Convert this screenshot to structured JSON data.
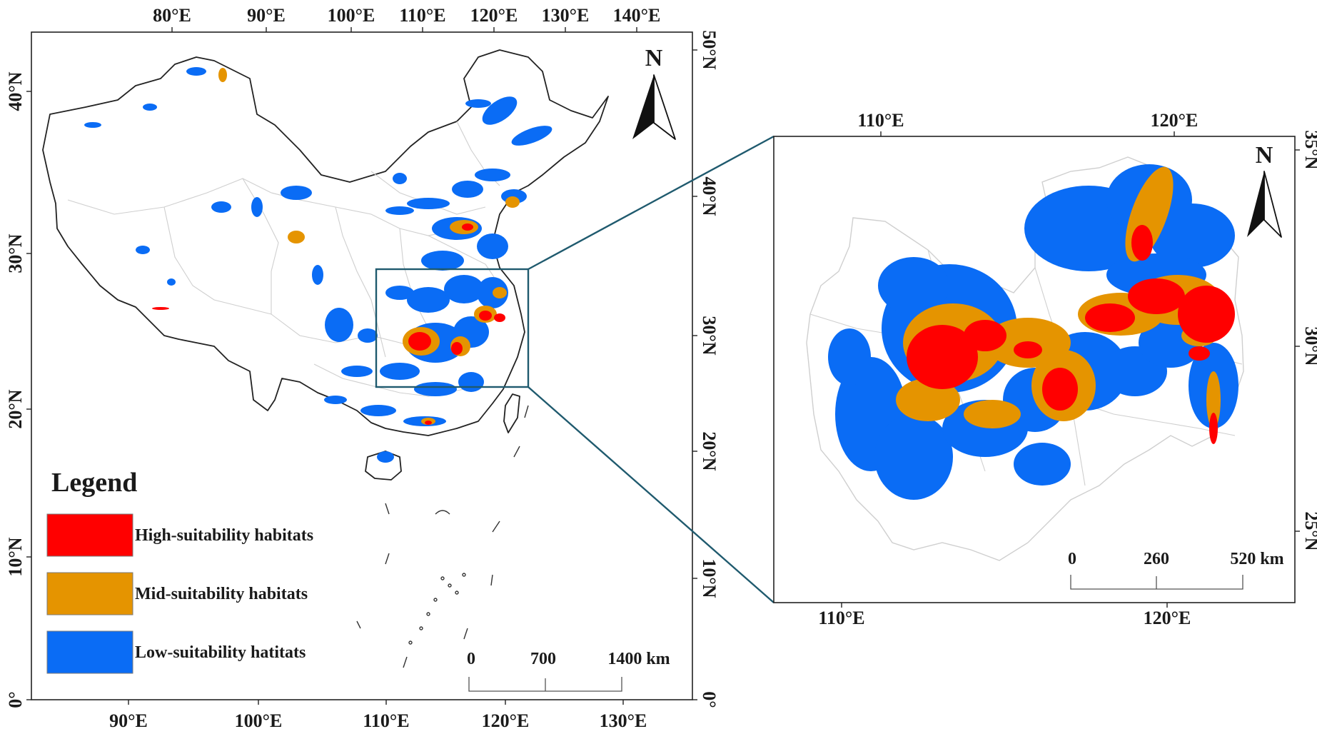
{
  "main_map": {
    "top_lon_labels": [
      "80°E",
      "90°E",
      "100°E",
      "110°E",
      "120°E",
      "130°E",
      "140°E"
    ],
    "bottom_lon_labels": [
      "90°E",
      "100°E",
      "110°E",
      "120°E",
      "130°E"
    ],
    "left_lat_labels": [
      "40°N",
      "30°N",
      "20°N",
      "10°N",
      "0°"
    ],
    "right_lat_labels": [
      "50°N",
      "40°N",
      "30°N",
      "20°N",
      "10°N",
      "0°"
    ],
    "north_label": "N",
    "scale": {
      "labels": [
        "0",
        "700",
        "1400 km"
      ]
    }
  },
  "inset_map": {
    "top_lon_labels": [
      "110°E",
      "120°E"
    ],
    "bottom_lon_labels": [
      "110°E",
      "120°E"
    ],
    "right_lat_labels": [
      "35°N",
      "30°N",
      "25°N"
    ],
    "north_label": "N",
    "scale": {
      "labels": [
        "0",
        "260",
        "520 km"
      ]
    }
  },
  "legend": {
    "title": "Legend",
    "items": [
      {
        "label": "High-suitability habitats",
        "color": "#ff0000"
      },
      {
        "label": "Mid-suitability habitats",
        "color": "#e59400"
      },
      {
        "label": "Low-suitability hatitats",
        "color": "#0a6cf5"
      }
    ]
  },
  "colors": {
    "high": "#ff0000",
    "mid": "#e59400",
    "low": "#0a6cf5",
    "outline": "#222222",
    "connector": "#1f5a6e"
  }
}
